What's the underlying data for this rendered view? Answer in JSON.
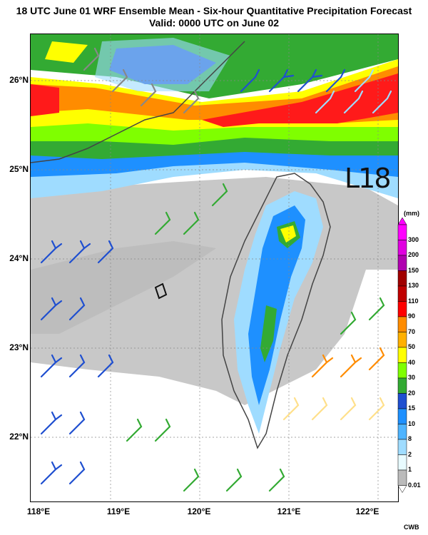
{
  "title_line1": "18 UTC June 01 WRF Ensemble Mean - Six-hour Quantitative Precipitation Forecast",
  "title_line2": "Valid: 0000 UTC on June 02",
  "map_label": "L18",
  "latitude_labels": [
    "26°N",
    "25°N",
    "24°N",
    "23°N",
    "22°N"
  ],
  "longitude_labels": [
    "118°E",
    "119°E",
    "120°E",
    "121°E",
    "122°E"
  ],
  "colorbar": {
    "unit": "(mm)",
    "levels": [
      "300",
      "200",
      "150",
      "130",
      "110",
      "90",
      "70",
      "50",
      "40",
      "30",
      "20",
      "15",
      "10",
      "8",
      "2",
      "1",
      "0.01"
    ],
    "colors": [
      "#ff00ff",
      "#e000e0",
      "#b000b0",
      "#a00000",
      "#c00000",
      "#ff0000",
      "#ff8c00",
      "#ffb000",
      "#ffff00",
      "#7fff00",
      "#33aa33",
      "#1f4fd0",
      "#1e90ff",
      "#4fb4ff",
      "#9fdcff",
      "#e8fbff",
      "#bbbbbb"
    ]
  },
  "credit": "CWB"
}
